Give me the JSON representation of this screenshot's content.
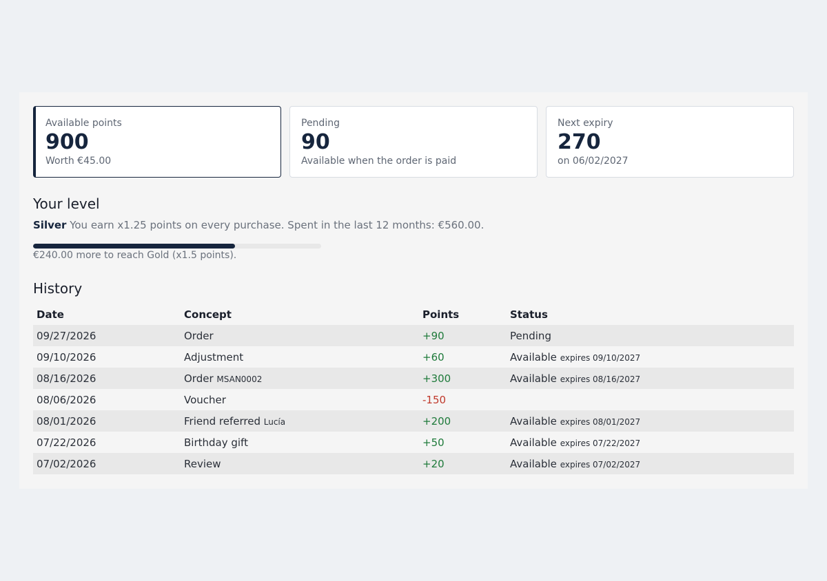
{
  "summary": {
    "available": {
      "label": "Available points",
      "value": "900",
      "sub": "Worth €45.00"
    },
    "pending": {
      "label": "Pending",
      "value": "90",
      "sub": "Available when the order is paid"
    },
    "expiry": {
      "label": "Next expiry",
      "value": "270",
      "sub": "on 06/02/2027"
    }
  },
  "level": {
    "title": "Your level",
    "tier": "Silver",
    "description": " You earn x1.25 points on every purchase. Spent in the last 12 months: €560.00.",
    "progress_fraction": 0.7,
    "progress_note": "€240.00 more to reach Gold (x1.5 points)."
  },
  "history": {
    "title": "History",
    "columns": [
      "Date",
      "Concept",
      "Points",
      "Status"
    ],
    "rows": [
      {
        "date": "09/27/2026",
        "concept": "Order",
        "concept_detail": "",
        "points": "+90",
        "sign": "pos",
        "status": "Pending",
        "expires": ""
      },
      {
        "date": "09/10/2026",
        "concept": "Adjustment",
        "concept_detail": "",
        "points": "+60",
        "sign": "pos",
        "status": "Available",
        "expires": "expires 09/10/2027"
      },
      {
        "date": "08/16/2026",
        "concept": "Order",
        "concept_detail": "MSAN0002",
        "points": "+300",
        "sign": "pos",
        "status": "Available",
        "expires": "expires 08/16/2027"
      },
      {
        "date": "08/06/2026",
        "concept": "Voucher",
        "concept_detail": "",
        "points": "-150",
        "sign": "neg",
        "status": "",
        "expires": ""
      },
      {
        "date": "08/01/2026",
        "concept": "Friend referred",
        "concept_detail": "Lucía",
        "points": "+200",
        "sign": "pos",
        "status": "Available",
        "expires": "expires 08/01/2027"
      },
      {
        "date": "07/22/2026",
        "concept": "Birthday gift",
        "concept_detail": "",
        "points": "+50",
        "sign": "pos",
        "status": "Available",
        "expires": "expires 07/22/2027"
      },
      {
        "date": "07/02/2026",
        "concept": "Review",
        "concept_detail": "",
        "points": "+20",
        "sign": "pos",
        "status": "Available",
        "expires": "expires 07/02/2027"
      }
    ]
  },
  "colors": {
    "accent": "#16253d",
    "positive": "#1e7a3a",
    "negative": "#c0392b"
  }
}
